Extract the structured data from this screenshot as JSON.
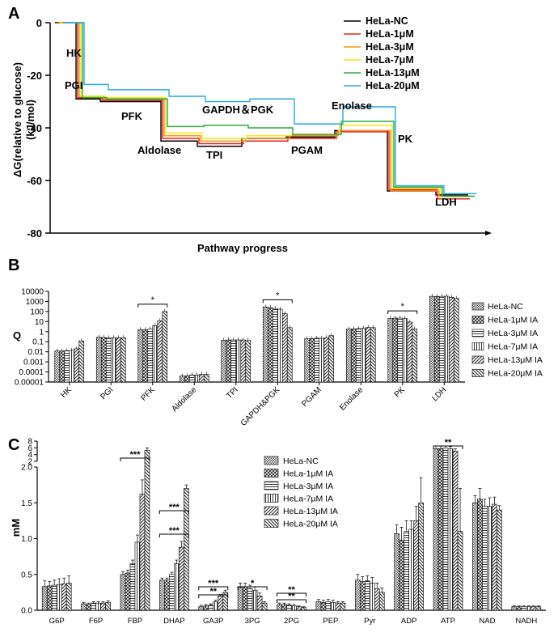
{
  "panel_labels": {
    "a": "A",
    "b": "B",
    "c": "C"
  },
  "chart_data": [
    {
      "type": "line",
      "panel": "A",
      "xlabel": "Pathway progress",
      "ylabel": "ΔG(relative to glucose)",
      "ylabel_unit": "(kJ/mol)",
      "ylim": [
        -80,
        0
      ],
      "yticks": [
        "0",
        "-20",
        "-40",
        "-60",
        "-80"
      ],
      "step_labels": [
        "HK",
        "PGI",
        "PFK",
        "Aldolase",
        "TPI",
        "GAPDH＆PGK",
        "PGAM",
        "Enolase",
        "PK",
        "LDH"
      ],
      "series": [
        {
          "name": "HeLa-NC",
          "color": "#000000",
          "values": [
            0,
            -29,
            -30,
            -45,
            -47,
            -44,
            -43.5,
            -41,
            -64,
            -65.5
          ]
        },
        {
          "name": "HeLa-1μM",
          "color": "#e8211b",
          "values": [
            0,
            -28.5,
            -29.5,
            -44,
            -46,
            -45,
            -44,
            -41.5,
            -63.5,
            -67
          ]
        },
        {
          "name": "HeLa-3μM",
          "color": "#f7941d",
          "values": [
            0,
            -28,
            -29,
            -43,
            -45,
            -44,
            -43,
            -41,
            -64,
            -66
          ]
        },
        {
          "name": "HeLa-7μM",
          "color": "#f2e70f",
          "values": [
            0,
            -28,
            -28.5,
            -42,
            -44,
            -43,
            -42.5,
            -39,
            -63,
            -65
          ]
        },
        {
          "name": "HeLa-13μM",
          "color": "#2eaa3c",
          "values": [
            0,
            -28.5,
            -29,
            -39.5,
            -39,
            -40,
            -42.5,
            -37.5,
            -62.5,
            -66
          ]
        },
        {
          "name": "HeLa-20μM",
          "color": "#29a9e1",
          "values": [
            0,
            -23.5,
            -25.5,
            -28,
            -30,
            -29,
            -38.5,
            -32,
            -62,
            -65
          ]
        }
      ]
    },
    {
      "type": "bar",
      "panel": "B",
      "ylabel": "Q",
      "yscale": "log",
      "yticks": [
        "10000",
        "1000",
        "100",
        "10",
        "1",
        "0.1",
        "0.01",
        "0.001",
        "0.0001",
        "0.00001"
      ],
      "categories": [
        "HK",
        "PGI",
        "PFK",
        "Aldolase",
        "TPI",
        "GAPDH&PGK",
        "PGAM",
        "Enolase",
        "PK",
        "LDH"
      ],
      "series": [
        {
          "name": "HeLa-NC",
          "values": [
            0.012,
            0.28,
            1.6,
            4e-05,
            0.14,
            280,
            0.2,
            1.8,
            20,
            3200
          ]
        },
        {
          "name": "HeLa-1μM IA",
          "values": [
            0.012,
            0.26,
            1.6,
            4e-05,
            0.15,
            240,
            0.2,
            1.9,
            22,
            3100
          ]
        },
        {
          "name": "HeLa-3μM IA",
          "values": [
            0.013,
            0.25,
            1.8,
            5e-05,
            0.15,
            200,
            0.22,
            2.0,
            22,
            3200
          ]
        },
        {
          "name": "HeLa-7μM IA",
          "values": [
            0.014,
            0.25,
            4,
            5e-05,
            0.15,
            170,
            0.22,
            2.2,
            20,
            3300
          ]
        },
        {
          "name": "HeLa-13μM IA",
          "values": [
            0.02,
            0.25,
            12,
            6e-05,
            0.15,
            60,
            0.25,
            2.6,
            9,
            2600
          ]
        },
        {
          "name": "HeLa-20μM IA",
          "values": [
            0.12,
            0.25,
            100,
            6e-05,
            0.13,
            2.5,
            0.4,
            2.5,
            1.8,
            2000
          ]
        }
      ],
      "significance": [
        {
          "category": "PFK",
          "label": "*"
        },
        {
          "category": "GAPDH&PGK",
          "label": "*"
        },
        {
          "category": "PK",
          "label": "*"
        }
      ]
    },
    {
      "type": "bar",
      "panel": "C",
      "ylabel": "mM",
      "yaxis_break": [
        2,
        2
      ],
      "yticks_lower": [
        "0.0",
        "0.5",
        "1.0",
        "1.5",
        "2.0"
      ],
      "yticks_upper": [
        "2",
        "4",
        "6",
        "8"
      ],
      "categories": [
        "G6P",
        "F6P",
        "FBP",
        "DHAP",
        "GA3P",
        "3PG",
        "2PG",
        "PEP",
        "Pyr",
        "ADP",
        "ATP",
        "NAD",
        "NADH"
      ],
      "series": [
        {
          "name": "HeLa-NC",
          "values": [
            0.33,
            0.09,
            0.5,
            0.42,
            0.05,
            0.32,
            0.08,
            0.12,
            0.42,
            1.07,
            5.7,
            1.5,
            0.05
          ]
        },
        {
          "name": "HeLa-1μM IA",
          "values": [
            0.34,
            0.08,
            0.52,
            0.42,
            0.06,
            0.33,
            0.08,
            0.11,
            0.4,
            0.98,
            5.8,
            1.55,
            0.05
          ]
        },
        {
          "name": "HeLa-3μM IA",
          "values": [
            0.35,
            0.1,
            0.65,
            0.5,
            0.07,
            0.3,
            0.07,
            0.12,
            0.41,
            1.1,
            5.9,
            1.45,
            0.05
          ]
        },
        {
          "name": "HeLa-7μM IA",
          "values": [
            0.36,
            0.1,
            0.95,
            0.65,
            0.12,
            0.28,
            0.06,
            0.11,
            0.38,
            1.13,
            5.7,
            1.45,
            0.05
          ]
        },
        {
          "name": "HeLa-13μM IA",
          "values": [
            0.37,
            0.1,
            1.62,
            0.88,
            0.2,
            0.2,
            0.05,
            0.1,
            0.3,
            1.25,
            5.0,
            1.48,
            0.05
          ]
        },
        {
          "name": "HeLa-20μM IA",
          "values": [
            0.38,
            0.11,
            5.3,
            1.7,
            0.25,
            0.1,
            0.04,
            0.1,
            0.25,
            1.5,
            1.1,
            1.4,
            0.05
          ]
        }
      ],
      "errors": [
        [
          0.08,
          0.02,
          0.04,
          0.03,
          0.02,
          0.06,
          0.02,
          0.03,
          0.08,
          0.12,
          0.9,
          0.1,
          0.01
        ],
        [
          0.06,
          0.02,
          0.04,
          0.03,
          0.02,
          0.05,
          0.02,
          0.03,
          0.07,
          0.18,
          0.7,
          0.15,
          0.01
        ],
        [
          0.07,
          0.02,
          0.05,
          0.03,
          0.02,
          0.05,
          0.02,
          0.03,
          0.07,
          0.15,
          0.6,
          0.1,
          0.01
        ],
        [
          0.08,
          0.02,
          0.1,
          0.05,
          0.02,
          0.05,
          0.02,
          0.03,
          0.08,
          0.12,
          0.7,
          0.12,
          0.01
        ],
        [
          0.08,
          0.02,
          0.2,
          0.08,
          0.02,
          0.04,
          0.01,
          0.02,
          0.08,
          0.2,
          0.7,
          0.1,
          0.01
        ],
        [
          0.1,
          0.02,
          0.7,
          0.05,
          0.03,
          0.02,
          0.01,
          0.02,
          0.06,
          0.35,
          0.6,
          0.06,
          0.01
        ]
      ],
      "significance": [
        {
          "category": "FBP",
          "label": "***"
        },
        {
          "category": "DHAP",
          "label": "***"
        },
        {
          "category": "DHAP",
          "label": "***"
        },
        {
          "category": "GA3P",
          "label": "***"
        },
        {
          "category": "GA3P",
          "label": "**"
        },
        {
          "category": "3PG",
          "label": "*"
        },
        {
          "category": "2PG",
          "label": "**"
        },
        {
          "category": "2PG",
          "label": "**"
        },
        {
          "category": "ATP",
          "label": "**"
        }
      ]
    }
  ]
}
